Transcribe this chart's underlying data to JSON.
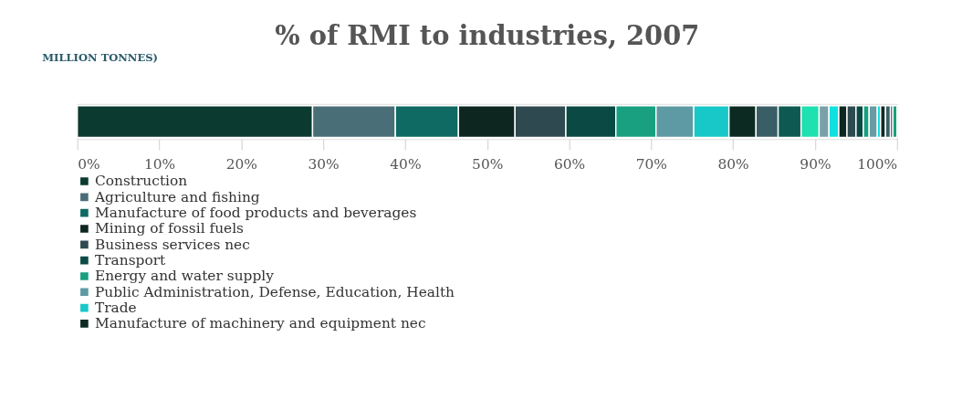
{
  "chart_data": {
    "type": "bar",
    "orientation": "horizontal",
    "stacked": true,
    "title": "% of RMI to industries, 2007",
    "annotations": [
      "MILLION TONNES)"
    ],
    "categories": [
      null
    ],
    "series": [
      {
        "name": "Construction",
        "color": "#0a3a30",
        "values": [
          28.7
        ]
      },
      {
        "name": "Agriculture and fishing",
        "color": "#4a6e78",
        "values": [
          10.1
        ]
      },
      {
        "name": "Manufacture of food products and beverages",
        "color": "#0e6a62",
        "values": [
          7.7
        ]
      },
      {
        "name": "Mining of fossil fuels",
        "color": "#0d2620",
        "values": [
          6.9
        ]
      },
      {
        "name": "Business services nec",
        "color": "#2e4a50",
        "values": [
          6.2
        ]
      },
      {
        "name": "Transport",
        "color": "#0b4a44",
        "values": [
          6.1
        ]
      },
      {
        "name": "Energy and water supply",
        "color": "#18a080",
        "values": [
          4.9
        ]
      },
      {
        "name": "Public Administration, Defense, Education, Health",
        "color": "#5e9aa4",
        "values": [
          4.6
        ]
      },
      {
        "name": "Trade",
        "color": "#18c8c8",
        "values": [
          4.3
        ]
      },
      {
        "name": "Manufacture of machinery and equipment nec",
        "color": "#0d2a22",
        "values": [
          3.3
        ]
      },
      {
        "color": "#3a5e66",
        "values": [
          2.7
        ]
      },
      {
        "color": "#0e5a52",
        "values": [
          2.8
        ]
      },
      {
        "color": "#1ee0b0",
        "values": [
          2.2
        ]
      },
      {
        "color": "#7aa0a8",
        "values": [
          1.2
        ]
      },
      {
        "color": "#10e0e0",
        "values": [
          1.2
        ]
      },
      {
        "color": "#0d2620",
        "values": [
          1.0
        ]
      },
      {
        "color": "#2e4a50",
        "values": [
          1.1
        ]
      },
      {
        "color": "#0b4a44",
        "values": [
          0.9
        ]
      },
      {
        "color": "#18a080",
        "values": [
          0.7
        ]
      },
      {
        "color": "#6a9aa4",
        "values": [
          1.0
        ]
      },
      {
        "color": "#10e0e0",
        "values": [
          0.4
        ]
      },
      {
        "color": "#0d2a22",
        "values": [
          0.6
        ]
      },
      {
        "color": "#3a5e66",
        "values": [
          0.6
        ]
      },
      {
        "color": "#0b4a44",
        "values": [
          0.3
        ]
      },
      {
        "color": "#18a080",
        "values": [
          0.5
        ]
      }
    ],
    "xlim": [
      0,
      100
    ],
    "xticks": [
      {
        "value": 0,
        "label": "0%"
      },
      {
        "value": 10,
        "label": "10%"
      },
      {
        "value": 20,
        "label": "20%"
      },
      {
        "value": 30,
        "label": "30%"
      },
      {
        "value": 40,
        "label": "40%"
      },
      {
        "value": 50,
        "label": "50%"
      },
      {
        "value": 60,
        "label": "60%"
      },
      {
        "value": 70,
        "label": "70%"
      },
      {
        "value": 80,
        "label": "80%"
      },
      {
        "value": 90,
        "label": "90%"
      },
      {
        "value": 100,
        "label": "100%"
      }
    ],
    "grid": false,
    "legend": "bottom"
  }
}
